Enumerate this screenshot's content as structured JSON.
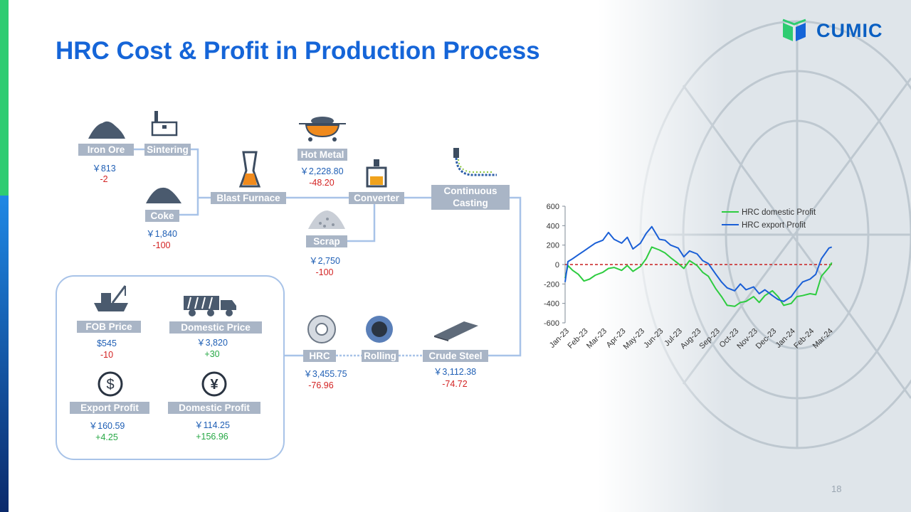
{
  "title": "HRC Cost & Profit in Production Process",
  "logo_text": "CUMIC",
  "page_number": "18",
  "process": {
    "iron_ore": {
      "label": "Iron Ore",
      "price": "￥813",
      "change": "-2"
    },
    "sintering": {
      "label": "Sintering"
    },
    "coke": {
      "label": "Coke",
      "price": "￥1,840",
      "change": "-100"
    },
    "blast_furnace": {
      "label": "Blast Furnace"
    },
    "hot_metal": {
      "label": "Hot Metal",
      "price": "￥2,228.80",
      "change": "-48.20"
    },
    "converter": {
      "label": "Converter"
    },
    "scrap": {
      "label": "Scrap",
      "price": "￥2,750",
      "change": "-100"
    },
    "continuous_casting": {
      "label1": "Continuous",
      "label2": "Casting"
    },
    "crude_steel": {
      "label": "Crude Steel",
      "price": "￥3,112.38",
      "change": "-74.72"
    },
    "rolling": {
      "label": "Rolling"
    },
    "hrc": {
      "label": "HRC",
      "price": "￥3,455.75",
      "change": "-76.96"
    }
  },
  "summary": {
    "fob_price": {
      "label": "FOB Price",
      "value": "$545",
      "change": "-10"
    },
    "domestic_price": {
      "label": "Domestic Price",
      "value": "￥3,820",
      "change": "+30"
    },
    "export_profit": {
      "label": "Export Profit",
      "value": "￥160.59",
      "change": "+4.25"
    },
    "domestic_profit": {
      "label": "Domestic Profit",
      "value": "￥114.25",
      "change": "+156.96"
    }
  },
  "colors": {
    "title": "#1565d8",
    "label_bg": "#a9b5c6",
    "connector": "#a8c3e8",
    "domestic": "#2ecc40",
    "export": "#1a5fd6",
    "zero_line": "#c81e1e"
  },
  "chart_data": {
    "type": "line",
    "title": "",
    "xlabel": "",
    "ylabel": "",
    "ylim": [
      -600,
      600
    ],
    "yticks": [
      -600,
      -400,
      -200,
      0,
      200,
      400,
      600
    ],
    "x_tick_labels": [
      "Jan-23",
      "Feb-23",
      "Mar-23",
      "Apr-23",
      "May-23",
      "Jun-23",
      "Jul-23",
      "Aug-23",
      "Sep-23",
      "Oct-23",
      "Nov-23",
      "Dec-23",
      "Jan-24",
      "Feb-24",
      "Mar-24"
    ],
    "legend_position": "top-right",
    "reference_line": {
      "y": 0,
      "style": "dashed"
    },
    "series": [
      {
        "name": "HRC domestic Profit",
        "color": "#2ecc40",
        "x": [
          0,
          0.15,
          0.4,
          0.7,
          1,
          1.3,
          1.6,
          2,
          2.3,
          2.6,
          3,
          3.3,
          3.6,
          4,
          4.3,
          4.6,
          5,
          5.3,
          5.6,
          6,
          6.3,
          6.6,
          7,
          7.3,
          7.6,
          8,
          8.3,
          8.6,
          9,
          9.3,
          9.6,
          10,
          10.3,
          10.6,
          11,
          11.3,
          11.6,
          12,
          12.3,
          12.6,
          13,
          13.3,
          13.6,
          14,
          14.15
        ],
        "values": [
          -140,
          -10,
          -60,
          -100,
          -170,
          -150,
          -110,
          -80,
          -40,
          -30,
          -60,
          -10,
          -70,
          -20,
          60,
          180,
          150,
          120,
          70,
          10,
          -40,
          40,
          -10,
          -80,
          -120,
          -250,
          -330,
          -420,
          -430,
          -390,
          -380,
          -330,
          -390,
          -320,
          -270,
          -330,
          -420,
          -400,
          -330,
          -320,
          -300,
          -310,
          -120,
          -30,
          20
        ]
      },
      {
        "name": "HRC export Profit",
        "color": "#1a5fd6",
        "x": [
          0,
          0.15,
          0.4,
          0.7,
          1,
          1.3,
          1.6,
          2,
          2.3,
          2.6,
          3,
          3.3,
          3.6,
          4,
          4.3,
          4.6,
          5,
          5.3,
          5.6,
          6,
          6.3,
          6.6,
          7,
          7.3,
          7.6,
          8,
          8.3,
          8.6,
          9,
          9.3,
          9.6,
          10,
          10.3,
          10.6,
          11,
          11.3,
          11.6,
          12,
          12.3,
          12.6,
          13,
          13.3,
          13.6,
          14,
          14.15
        ],
        "values": [
          -180,
          30,
          60,
          100,
          140,
          180,
          220,
          250,
          330,
          260,
          220,
          280,
          160,
          220,
          320,
          390,
          260,
          250,
          200,
          170,
          80,
          140,
          110,
          40,
          10,
          -100,
          -180,
          -240,
          -270,
          -200,
          -260,
          -230,
          -300,
          -260,
          -320,
          -360,
          -380,
          -330,
          -250,
          -180,
          -150,
          -100,
          60,
          170,
          180
        ]
      }
    ]
  }
}
